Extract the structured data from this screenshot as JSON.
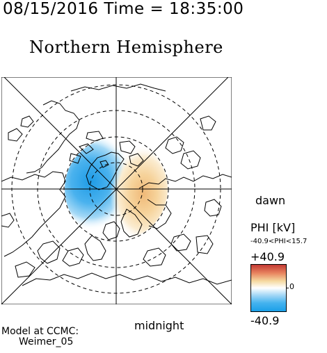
{
  "header": {
    "datetime": "08/15/2016 Time = 18:35:00",
    "hemisphere": "Northern Hemisphere"
  },
  "map": {
    "dawn_label": "dawn",
    "midnight_label": "midnight"
  },
  "colorbar": {
    "title": "PHI [kV]",
    "range_label": "-40.9<PHI<15.7",
    "max_label": "+40.9",
    "zero_label": "0",
    "min_label": "-40.9",
    "colors": {
      "max": "#c43a34",
      "zero": "#ffffff",
      "min": "#1a9fe8"
    }
  },
  "credit": {
    "line1": "Model at CCMC:",
    "line2": "Weimer_05"
  }
}
